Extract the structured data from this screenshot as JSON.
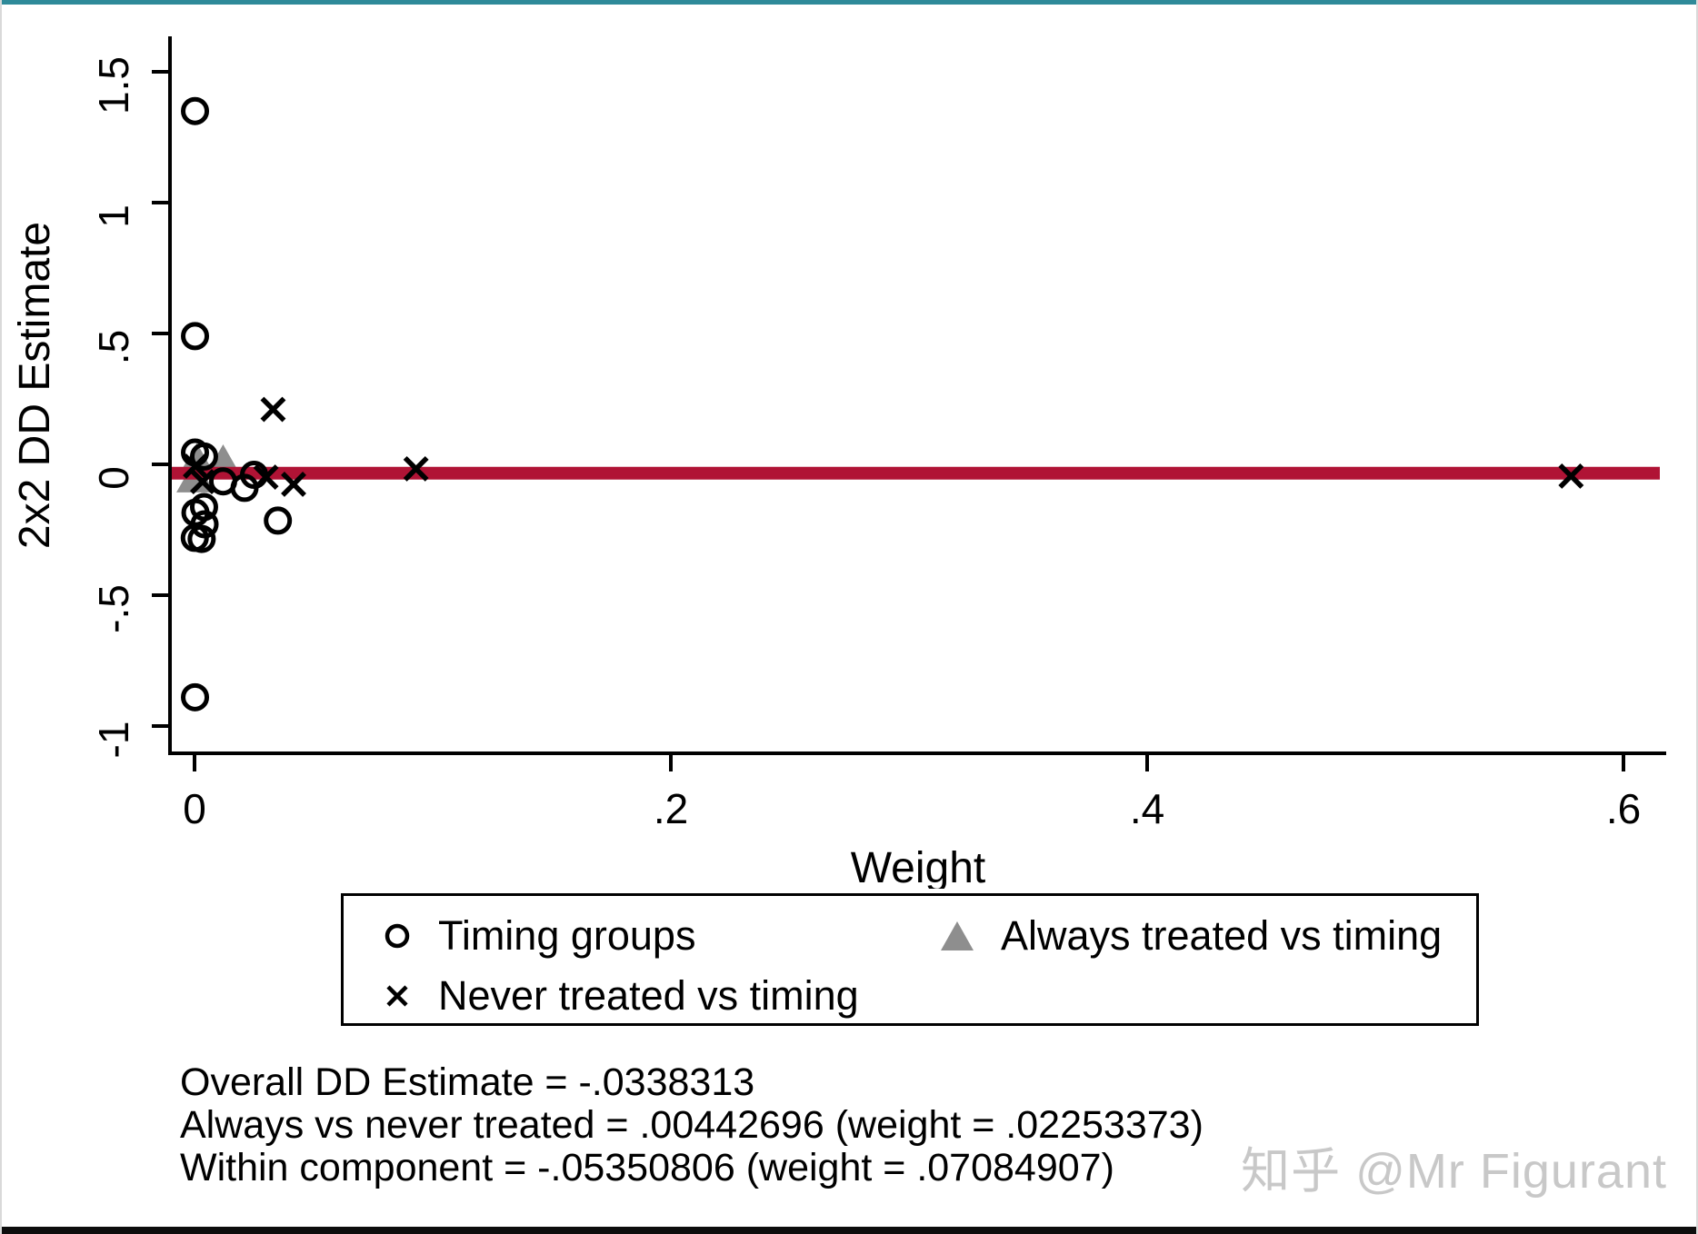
{
  "frame": {
    "top_bar_color": "#2e8a99",
    "bottom_bar_color": "#0d0d0d",
    "background": "#ffffff"
  },
  "chart_data": {
    "type": "scatter",
    "title": "",
    "xlabel": "Weight",
    "ylabel": "2x2 DD Estimate",
    "xlim": [
      -0.012,
      0.63
    ],
    "ylim": [
      -1.1,
      1.6
    ],
    "grid": false,
    "legend_position": "bottom",
    "x_ticks": [
      0,
      0.2,
      0.4,
      0.6
    ],
    "x_tick_labels": [
      "0",
      ".2",
      ".4",
      ".6"
    ],
    "y_ticks": [
      -1,
      -0.5,
      0,
      0.5,
      1,
      1.5
    ],
    "y_tick_labels": [
      "-1",
      "-.5",
      "0",
      ".5",
      "1",
      "1.5"
    ],
    "reference_line": {
      "value": -0.0338313,
      "color": "#b01335",
      "thickness": 14
    },
    "series": [
      {
        "name": "Timing groups",
        "marker": "circle",
        "color": "#000000",
        "points": [
          [
            0.0002,
            1.35
          ],
          [
            0.0002,
            0.49
          ],
          [
            0.0002,
            0.045
          ],
          [
            0.004,
            0.03
          ],
          [
            0.012,
            -0.065
          ],
          [
            0.021,
            -0.09
          ],
          [
            0.025,
            -0.04
          ],
          [
            0.004,
            -0.163
          ],
          [
            0.0004,
            -0.185
          ],
          [
            0.0042,
            -0.229
          ],
          [
            0.0001,
            -0.281
          ],
          [
            0.003,
            -0.285
          ],
          [
            0.035,
            -0.215
          ],
          [
            0.0002,
            -0.89
          ]
        ]
      },
      {
        "name": "Always treated vs timing",
        "marker": "triangle",
        "color": "#8e8e8e",
        "points": [
          [
            0.001,
            0.005
          ],
          [
            0.0004,
            -0.055
          ],
          [
            0.012,
            0.0
          ]
        ]
      },
      {
        "name": "Never treated vs timing",
        "marker": "x",
        "color": "#000000",
        "points": [
          [
            0.033,
            0.21
          ],
          [
            0.0004,
            -0.007
          ],
          [
            0.0034,
            -0.066
          ],
          [
            0.03,
            -0.049
          ],
          [
            0.0416,
            -0.076
          ],
          [
            0.093,
            -0.017
          ],
          [
            0.578,
            -0.045
          ]
        ]
      }
    ]
  },
  "stats": {
    "line1": "Overall DD Estimate = -.0338313",
    "line2": "Always vs never treated = .00442696 (weight = .02253373)",
    "line3": "Within component = -.05350806 (weight = .07084907)"
  },
  "watermark": {
    "text": "知乎 @Mr Figurant"
  }
}
